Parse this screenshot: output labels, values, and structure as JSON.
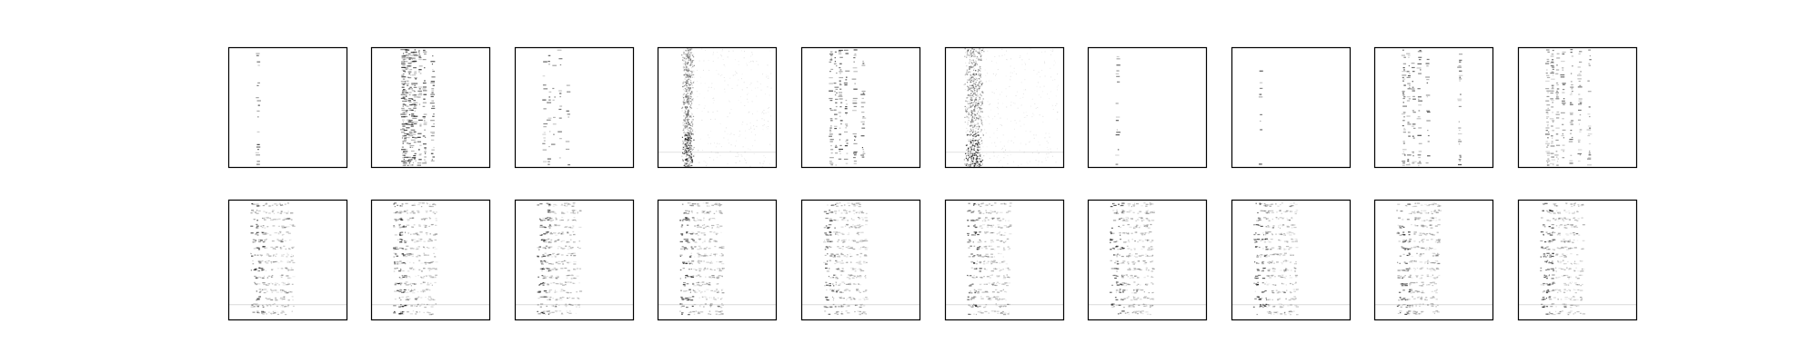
{
  "figure": {
    "background": "#ffffff",
    "rows": 2,
    "cols": 10,
    "frame_color": "#000000",
    "ink_color": "#000000"
  },
  "chart_data": {
    "type": "heatmap",
    "title": "",
    "xlabel": "",
    "ylabel": "",
    "axes_ticks": false,
    "colormap": "gray_r",
    "grid": false,
    "panels": [
      {
        "row": 1,
        "col": 1,
        "pattern": "sparse_column",
        "column_positions": [
          0.25
        ],
        "density": 0.35,
        "intensity": 0.55
      },
      {
        "row": 1,
        "col": 2,
        "pattern": "dense_columns",
        "column_positions": [
          0.27,
          0.29,
          0.31,
          0.33,
          0.35,
          0.37,
          0.41,
          0.45,
          0.52
        ],
        "density": 0.8,
        "intensity": 0.6
      },
      {
        "row": 1,
        "col": 3,
        "pattern": "sparse_column",
        "column_positions": [
          0.25,
          0.29,
          0.33,
          0.38,
          0.45
        ],
        "density": 0.4,
        "intensity": 0.5
      },
      {
        "row": 1,
        "col": 4,
        "pattern": "noise_band",
        "column_positions": [
          0.22,
          0.24,
          0.26,
          0.28
        ],
        "density": 0.9,
        "intensity": 0.55
      },
      {
        "row": 1,
        "col": 5,
        "pattern": "dense_columns",
        "column_positions": [
          0.25,
          0.29,
          0.33,
          0.38,
          0.45,
          0.52
        ],
        "density": 0.55,
        "intensity": 0.55
      },
      {
        "row": 1,
        "col": 6,
        "pattern": "noise_band",
        "column_positions": [
          0.18,
          0.2,
          0.22,
          0.24,
          0.26,
          0.28,
          0.3
        ],
        "density": 0.95,
        "intensity": 0.6
      },
      {
        "row": 1,
        "col": 7,
        "pattern": "sparse_column",
        "column_positions": [
          0.25
        ],
        "density": 0.4,
        "intensity": 0.5
      },
      {
        "row": 1,
        "col": 8,
        "pattern": "sparse_column",
        "column_positions": [
          0.25
        ],
        "density": 0.25,
        "intensity": 0.6
      },
      {
        "row": 1,
        "col": 9,
        "pattern": "dense_columns",
        "column_positions": [
          0.25,
          0.29,
          0.33,
          0.38,
          0.45,
          0.72
        ],
        "density": 0.5,
        "intensity": 0.55
      },
      {
        "row": 1,
        "col": 10,
        "pattern": "dense_columns",
        "column_positions": [
          0.25,
          0.29,
          0.33,
          0.38,
          0.45,
          0.52,
          0.6
        ],
        "density": 0.6,
        "intensity": 0.45
      },
      {
        "row": 2,
        "col": 1,
        "pattern": "texture",
        "column_positions": [
          0.2,
          0.25,
          0.3,
          0.35,
          0.4,
          0.45,
          0.5
        ],
        "density": 0.75,
        "intensity": 0.45
      },
      {
        "row": 2,
        "col": 2,
        "pattern": "texture",
        "column_positions": [
          0.2,
          0.25,
          0.3,
          0.35,
          0.4,
          0.45,
          0.5
        ],
        "density": 0.75,
        "intensity": 0.45
      },
      {
        "row": 2,
        "col": 3,
        "pattern": "texture",
        "column_positions": [
          0.2,
          0.25,
          0.3,
          0.35,
          0.4,
          0.45,
          0.5
        ],
        "density": 0.75,
        "intensity": 0.45
      },
      {
        "row": 2,
        "col": 4,
        "pattern": "texture",
        "column_positions": [
          0.2,
          0.25,
          0.3,
          0.35,
          0.4,
          0.45,
          0.5
        ],
        "density": 0.75,
        "intensity": 0.45
      },
      {
        "row": 2,
        "col": 5,
        "pattern": "texture",
        "column_positions": [
          0.2,
          0.25,
          0.3,
          0.35,
          0.4,
          0.45,
          0.5
        ],
        "density": 0.75,
        "intensity": 0.45
      },
      {
        "row": 2,
        "col": 6,
        "pattern": "texture",
        "column_positions": [
          0.2,
          0.25,
          0.3,
          0.35,
          0.4,
          0.45,
          0.5
        ],
        "density": 0.75,
        "intensity": 0.45
      },
      {
        "row": 2,
        "col": 7,
        "pattern": "texture",
        "column_positions": [
          0.2,
          0.25,
          0.3,
          0.35,
          0.4,
          0.45,
          0.5
        ],
        "density": 0.75,
        "intensity": 0.45
      },
      {
        "row": 2,
        "col": 8,
        "pattern": "texture",
        "column_positions": [
          0.2,
          0.25,
          0.3,
          0.35,
          0.4,
          0.45,
          0.5
        ],
        "density": 0.75,
        "intensity": 0.45
      },
      {
        "row": 2,
        "col": 9,
        "pattern": "texture",
        "column_positions": [
          0.2,
          0.25,
          0.3,
          0.35,
          0.4,
          0.45,
          0.5
        ],
        "density": 0.75,
        "intensity": 0.45
      },
      {
        "row": 2,
        "col": 10,
        "pattern": "texture",
        "column_positions": [
          0.2,
          0.25,
          0.3,
          0.35,
          0.4,
          0.45,
          0.5
        ],
        "density": 0.75,
        "intensity": 0.45
      }
    ]
  }
}
